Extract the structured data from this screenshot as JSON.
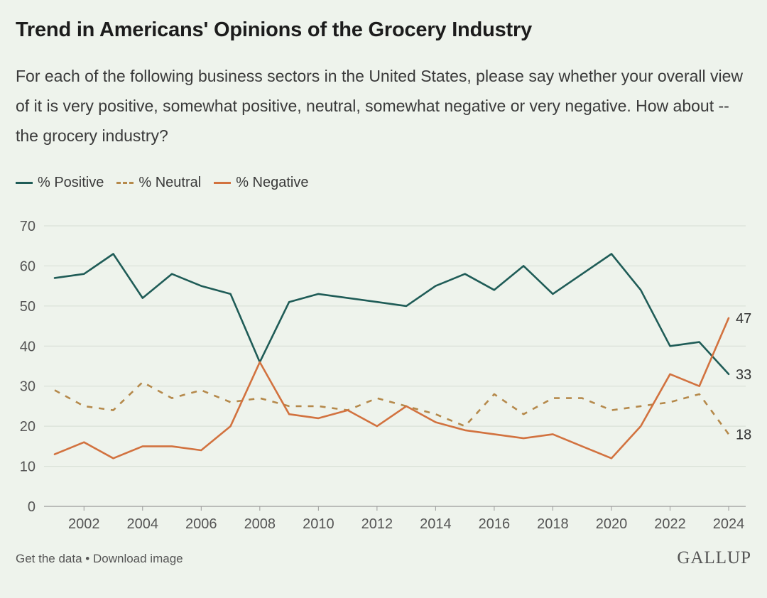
{
  "header": {
    "title": "Trend in Americans' Opinions of the Grocery Industry",
    "subtitle": "For each of the following business sectors in the United States, please say whether your overall view of it is very positive, somewhat positive, neutral, somewhat negative or very negative. How about -- the grocery industry?"
  },
  "footer": {
    "get_data": "Get the data",
    "separator": " • ",
    "download": "Download image",
    "brand": "GALLUP"
  },
  "chart_data": {
    "type": "line",
    "title": "Trend in Americans' Opinions of the Grocery Industry",
    "xlabel": "",
    "ylabel": "",
    "x": [
      2001,
      2002,
      2003,
      2004,
      2005,
      2006,
      2007,
      2008,
      2009,
      2010,
      2011,
      2012,
      2013,
      2014,
      2015,
      2016,
      2017,
      2018,
      2019,
      2020,
      2021,
      2022,
      2023,
      2024
    ],
    "x_ticks": [
      "2002",
      "2004",
      "2006",
      "2008",
      "2010",
      "2012",
      "2014",
      "2016",
      "2018",
      "2020",
      "2022",
      "2024"
    ],
    "y_ticks": [
      "0",
      "10",
      "20",
      "30",
      "40",
      "50",
      "60",
      "70"
    ],
    "ylim": [
      0,
      70
    ],
    "grid": true,
    "legend_position": "top-left",
    "series": [
      {
        "name": "% Positive",
        "color": "#1f5c57",
        "dash": false,
        "values": [
          57,
          58,
          63,
          52,
          58,
          55,
          53,
          36,
          51,
          53,
          52,
          51,
          50,
          55,
          58,
          54,
          60,
          53,
          58,
          63,
          54,
          40,
          41,
          33
        ],
        "end_label": "33"
      },
      {
        "name": "% Neutral",
        "color": "#b5894b",
        "dash": true,
        "values": [
          29,
          25,
          24,
          31,
          27,
          29,
          26,
          27,
          25,
          25,
          24,
          27,
          25,
          23,
          20,
          28,
          23,
          27,
          27,
          24,
          25,
          26,
          28,
          18
        ],
        "end_label": "18"
      },
      {
        "name": "% Negative",
        "color": "#d2723f",
        "dash": false,
        "values": [
          13,
          16,
          12,
          15,
          15,
          14,
          20,
          36,
          23,
          22,
          24,
          20,
          25,
          21,
          19,
          18,
          17,
          18,
          15,
          12,
          20,
          33,
          30,
          47
        ],
        "end_label": "47"
      }
    ]
  }
}
